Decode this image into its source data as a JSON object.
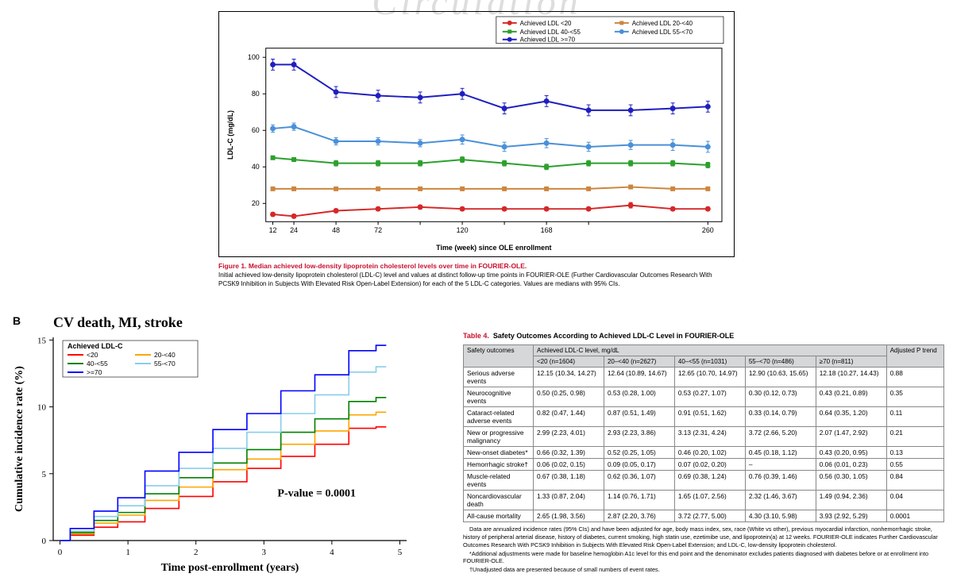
{
  "watermark": "Circulation",
  "figure1": {
    "type": "line",
    "title_label": "Figure 1.",
    "title_text": "Median achieved low-density lipoprotein cholesterol levels over time in FOURIER-OLE.",
    "caption": "Initial achieved low-density lipoprotein cholesterol (LDL-C) level and values at distinct follow-up time points in FOURIER-OLE (Further Cardiovascular Outcomes Research With PCSK9 Inhibition in Subjects With Elevated Risk Open-Label Extension) for each of the 5 LDL-C categories. Values are medians with 95% CIs.",
    "x_label": "Time (week) since OLE enrollment",
    "y_label": "LDL-C (mg/dL)",
    "x_ticks": [
      12,
      24,
      48,
      72,
      96,
      120,
      144,
      168,
      192,
      260
    ],
    "x_tick_labels": [
      "12",
      "24",
      "48",
      "72",
      "",
      "120",
      "",
      "168",
      "",
      "260"
    ],
    "y_ticks": [
      20,
      40,
      60,
      80,
      100
    ],
    "ylim": [
      10,
      105
    ],
    "xlim": [
      8,
      268
    ],
    "background_color": "#ffffff",
    "axis_color": "#000000",
    "series": [
      {
        "name": "Achieved LDL <20",
        "color": "#d62728",
        "marker": "circle",
        "x": [
          12,
          24,
          48,
          72,
          96,
          120,
          144,
          168,
          192,
          216,
          240,
          260
        ],
        "y": [
          14,
          13,
          16,
          17,
          18,
          17,
          17,
          17,
          17,
          19,
          17,
          17
        ],
        "err": [
          1,
          1,
          1,
          1,
          1,
          1,
          1,
          1,
          1,
          1.5,
          1,
          1
        ]
      },
      {
        "name": "Achieved LDL 20-<40",
        "color": "#cd853f",
        "marker": "square",
        "x": [
          12,
          24,
          48,
          72,
          96,
          120,
          144,
          168,
          192,
          216,
          240,
          260
        ],
        "y": [
          28,
          28,
          28,
          28,
          28,
          28,
          28,
          28,
          28,
          29,
          28,
          28
        ],
        "err": [
          1,
          1,
          1,
          1,
          1,
          1,
          1,
          1,
          1,
          1,
          1,
          1
        ]
      },
      {
        "name": "Achieved LDL 40-<55",
        "color": "#2ca02c",
        "marker": "square",
        "x": [
          12,
          24,
          48,
          72,
          96,
          120,
          144,
          168,
          192,
          216,
          240,
          260
        ],
        "y": [
          45,
          44,
          42,
          42,
          42,
          44,
          42,
          40,
          42,
          42,
          42,
          41
        ],
        "err": [
          1,
          1,
          1.5,
          1.5,
          1.5,
          1.5,
          1.5,
          1.5,
          1.5,
          1.5,
          1.5,
          1.5
        ]
      },
      {
        "name": "Achieved LDL 55-<70",
        "color": "#4a90d9",
        "marker": "circle",
        "x": [
          12,
          24,
          48,
          72,
          96,
          120,
          144,
          168,
          192,
          216,
          240,
          260
        ],
        "y": [
          61,
          62,
          54,
          54,
          53,
          55,
          51,
          53,
          51,
          52,
          52,
          51
        ],
        "err": [
          2,
          2,
          2,
          2,
          2,
          2.5,
          2.5,
          2.5,
          2.5,
          2.5,
          3,
          3
        ]
      },
      {
        "name": "Achieved LDL >=70",
        "color": "#1f1fbf",
        "marker": "circle",
        "x": [
          12,
          24,
          48,
          72,
          96,
          120,
          144,
          168,
          192,
          216,
          240,
          260
        ],
        "y": [
          96,
          96,
          81,
          79,
          78,
          80,
          72,
          76,
          71,
          71,
          72,
          73
        ],
        "err": [
          3,
          3,
          3,
          3,
          3,
          3,
          3,
          3,
          3,
          3,
          3,
          3
        ]
      }
    ],
    "legend_position": "top-right"
  },
  "figureB": {
    "type": "km-line",
    "panel": "B",
    "title": "CV death, MI, stroke",
    "legend_title": "Achieved LDL-C",
    "x_label": "Time post-enrollment (years)",
    "y_label": "Cumulative incidence rate (%)",
    "pvalue": "P-value = 0.0001",
    "x_ticks": [
      0,
      1,
      2,
      3,
      4,
      5
    ],
    "y_ticks": [
      0,
      5,
      10,
      15
    ],
    "ylim": [
      0,
      15.2
    ],
    "xlim": [
      -0.1,
      5.1
    ],
    "series": [
      {
        "name": "<20",
        "color": "#ff0000",
        "pts": [
          [
            0,
            0
          ],
          [
            0.3,
            0.4
          ],
          [
            0.7,
            1.0
          ],
          [
            1.0,
            1.4
          ],
          [
            1.5,
            2.4
          ],
          [
            2.0,
            3.3
          ],
          [
            2.5,
            4.4
          ],
          [
            3.0,
            5.4
          ],
          [
            3.5,
            6.3
          ],
          [
            4.0,
            7.2
          ],
          [
            4.5,
            8.4
          ],
          [
            4.8,
            8.5
          ]
        ]
      },
      {
        "name": "20-<40",
        "color": "#ffa500",
        "pts": [
          [
            0,
            0
          ],
          [
            0.3,
            0.5
          ],
          [
            0.7,
            1.3
          ],
          [
            1.0,
            1.9
          ],
          [
            1.5,
            3.0
          ],
          [
            2.0,
            4.0
          ],
          [
            2.5,
            5.3
          ],
          [
            3.0,
            6.1
          ],
          [
            3.5,
            7.2
          ],
          [
            4.0,
            8.2
          ],
          [
            4.5,
            9.4
          ],
          [
            4.8,
            9.6
          ]
        ]
      },
      {
        "name": "40-<55",
        "color": "#008000",
        "pts": [
          [
            0,
            0
          ],
          [
            0.3,
            0.6
          ],
          [
            0.7,
            1.5
          ],
          [
            1.0,
            2.1
          ],
          [
            1.5,
            3.5
          ],
          [
            2.0,
            4.7
          ],
          [
            2.5,
            5.8
          ],
          [
            3.0,
            6.8
          ],
          [
            3.5,
            8.1
          ],
          [
            4.0,
            9.1
          ],
          [
            4.5,
            10.4
          ],
          [
            4.8,
            10.7
          ]
        ]
      },
      {
        "name": "55-<70",
        "color": "#87ceeb",
        "pts": [
          [
            0,
            0
          ],
          [
            0.3,
            0.7
          ],
          [
            0.7,
            1.8
          ],
          [
            1.0,
            2.6
          ],
          [
            1.5,
            4.1
          ],
          [
            2.0,
            5.4
          ],
          [
            2.5,
            6.9
          ],
          [
            3.0,
            8.1
          ],
          [
            3.5,
            9.5
          ],
          [
            4.0,
            10.9
          ],
          [
            4.5,
            12.6
          ],
          [
            4.8,
            13.0
          ]
        ]
      },
      {
        "name": ">=70",
        "color": "#0000ff",
        "pts": [
          [
            0,
            0
          ],
          [
            0.3,
            0.9
          ],
          [
            0.7,
            2.2
          ],
          [
            1.0,
            3.2
          ],
          [
            1.5,
            5.2
          ],
          [
            2.0,
            6.6
          ],
          [
            2.5,
            8.3
          ],
          [
            3.0,
            9.5
          ],
          [
            3.5,
            11.2
          ],
          [
            4.0,
            12.4
          ],
          [
            4.5,
            14.2
          ],
          [
            4.8,
            14.6
          ]
        ]
      }
    ]
  },
  "table4": {
    "title_label": "Table 4.",
    "title_text": "Safety Outcomes According to Achieved LDL-C Level in FOURIER-OLE",
    "group_header": "Achieved LDL-C level, mg/dL",
    "columns": [
      "Safety outcomes",
      "<20 (n=1604)",
      "20–<40 (n=2627)",
      "40–<55 (n=1031)",
      "55–<70 (n=486)",
      "≥70 (n=811)",
      "Adjusted P trend"
    ],
    "rows": [
      [
        "Serious adverse events",
        "12.15 (10.34, 14.27)",
        "12.64 (10.89, 14.67)",
        "12.65 (10.70, 14.97)",
        "12.90 (10.63, 15.65)",
        "12.18 (10.27, 14.43)",
        "0.88"
      ],
      [
        "Neurocognitive events",
        "0.50 (0.25, 0.98)",
        "0.53 (0.28, 1.00)",
        "0.53 (0.27, 1.07)",
        "0.30 (0.12, 0.73)",
        "0.43 (0.21, 0.89)",
        "0.35"
      ],
      [
        "Cataract-related adverse events",
        "0.82 (0.47, 1.44)",
        "0.87 (0.51, 1.49)",
        "0.91 (0.51, 1.62)",
        "0.33 (0.14, 0.79)",
        "0.64 (0.35, 1.20)",
        "0.11"
      ],
      [
        "New or progressive malignancy",
        "2.99 (2.23, 4.01)",
        "2.93 (2.23, 3.86)",
        "3.13 (2.31, 4.24)",
        "3.72 (2.66, 5.20)",
        "2.07 (1.47, 2.92)",
        "0.21"
      ],
      [
        "New-onset diabetes*",
        "0.66 (0.32, 1.39)",
        "0.52 (0.25, 1.05)",
        "0.46 (0.20, 1.02)",
        "0.45 (0.18, 1.12)",
        "0.43 (0.20, 0.95)",
        "0.13"
      ],
      [
        "Hemorrhagic stroke†",
        "0.06 (0.02, 0.15)",
        "0.09 (0.05, 0.17)",
        "0.07 (0.02, 0.20)",
        "–",
        "0.06 (0.01, 0.23)",
        "0.55"
      ],
      [
        "Muscle-related events",
        "0.67 (0.38, 1.18)",
        "0.62 (0.36, 1.07)",
        "0.69 (0.38, 1.24)",
        "0.76 (0.39, 1.46)",
        "0.56 (0.30, 1.05)",
        "0.84"
      ],
      [
        "Noncardiovascular death",
        "1.33 (0.87, 2.04)",
        "1.14 (0.76, 1.71)",
        "1.65 (1.07, 2.56)",
        "2.32 (1.46, 3.67)",
        "1.49 (0.94, 2.36)",
        "0.04"
      ],
      [
        "All-cause mortality",
        "2.65 (1.98, 3.56)",
        "2.87 (2.20, 3.76)",
        "3.72 (2.77, 5.00)",
        "4.30 (3.10, 5.98)",
        "3.93 (2.92, 5.29)",
        "0.0001"
      ]
    ],
    "notes": [
      "Data are annualized incidence rates (95% CIs) and have been adjusted for age, body mass index, sex, race (White vs other), previous myocardial infarction, nonhemorrhagic stroke, history of peripheral arterial disease, history of diabetes, current smoking, high statin use, ezetimibe use, and lipoprotein(a) at 12 weeks. FOURIER-OLE indicates Further Cardiovascular Outcomes Research With PCSK9 Inhibition in Subjects With Elevated Risk Open-Label Extension; and LDL-C, low-density lipoprotein cholesterol.",
      "*Additional adjustments were made for baseline hemoglobin A1c level for this end point and the denominator excludes patients diagnosed with diabetes before or at enrollment into FOURIER-OLE.",
      "†Unadjusted data are presented because of small numbers of event rates."
    ]
  }
}
